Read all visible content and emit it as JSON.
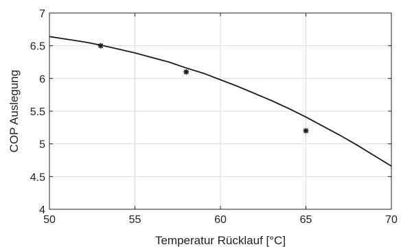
{
  "chart_data": {
    "type": "line",
    "title": "",
    "xlabel": "Temperatur Rücklauf [°C]",
    "ylabel": "COP Auslegung",
    "xlim": [
      50,
      70
    ],
    "ylim": [
      4,
      7
    ],
    "xticks": [
      50,
      55,
      60,
      65,
      70
    ],
    "xtick_labels": [
      "50",
      "55",
      "60",
      "65",
      "70"
    ],
    "yticks": [
      4,
      4.5,
      5,
      5.5,
      6,
      6.5,
      7
    ],
    "ytick_labels": [
      "4",
      "4.5",
      "5",
      "5.5",
      "6",
      "6.5",
      "7"
    ],
    "grid": true,
    "legend": false,
    "series": [
      {
        "style": "line",
        "color": "#1a1a1a",
        "x": [
          50,
          51,
          52,
          53,
          54,
          55,
          56,
          57,
          58,
          59,
          60,
          61,
          62,
          63,
          64,
          65,
          66,
          67,
          68,
          69,
          70
        ],
        "y": [
          6.64,
          6.6,
          6.56,
          6.51,
          6.45,
          6.39,
          6.32,
          6.25,
          6.16,
          6.08,
          5.98,
          5.88,
          5.77,
          5.66,
          5.54,
          5.41,
          5.27,
          5.13,
          4.98,
          4.82,
          4.66
        ]
      },
      {
        "style": "marker",
        "marker": "asterisk",
        "color": "#1a1a1a",
        "x": [
          53,
          58,
          65
        ],
        "y": [
          6.5,
          6.1,
          5.2
        ]
      }
    ],
    "colors": {
      "axis": "#222222",
      "grid": "#dcdcdc",
      "line": "#1a1a1a"
    }
  }
}
